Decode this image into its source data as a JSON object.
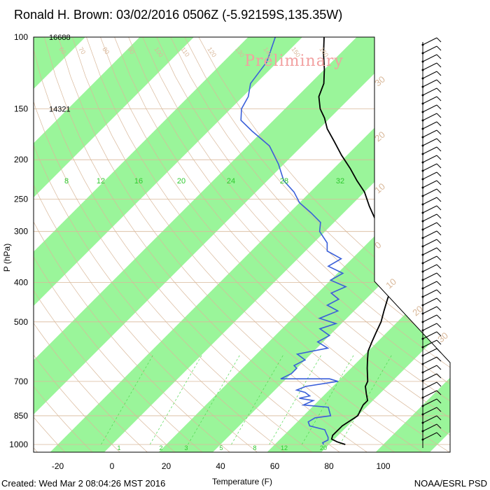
{
  "title": "Ronald H. Brown: 03/02/2016 0506Z (-5.92159S,135.35W)",
  "watermark": "Preliminary",
  "footer_left": "Created: Wed Mar  2 08:04:26 MST 2016",
  "footer_right": "NOAA/ESRL PSD",
  "colors": {
    "temperature": "#000000",
    "dewpoint": "#3a5fd9",
    "green_band": "#9af59a",
    "isotherm": "#d9b89a",
    "mixing_ratio": "#4fd84f",
    "watermark": "#f2a0a0"
  },
  "chart_data": {
    "type": "line",
    "chart_kind": "skew-T log-P diagram",
    "xlabel": "Temperature (F)",
    "ylabel": "P (hPa)",
    "x_ticks": [
      -20,
      0,
      20,
      40,
      60,
      80,
      100
    ],
    "y_ticks": [
      100,
      150,
      200,
      250,
      300,
      400,
      500,
      700,
      850,
      1000
    ],
    "xlim": [
      -28,
      124
    ],
    "ylim": [
      1050,
      100
    ],
    "y_scale": "log",
    "height_labels": [
      {
        "pressure": 100,
        "height": "16688"
      },
      {
        "pressure": 150,
        "height": "14321"
      }
    ],
    "mixing_ratio_labels": [
      "1",
      "2",
      "3",
      "5",
      "8",
      "12",
      "20"
    ],
    "upper_labels": [
      "8",
      "12",
      "16",
      "20",
      "24",
      "28",
      "32"
    ],
    "isotherm_labels": [
      "-80",
      "-70",
      "-60",
      "-50",
      "-40",
      "-30",
      "-20",
      "-10",
      "0",
      "10",
      "20",
      "30"
    ],
    "adiabat_labels": [
      "60",
      "70",
      "80",
      "90",
      "100",
      "110",
      "120",
      "130",
      "140",
      "150",
      "160"
    ],
    "series": [
      {
        "name": "Temperature",
        "points": [
          [
            86,
            1000
          ],
          [
            82,
            985
          ],
          [
            79,
            970
          ],
          [
            78,
            950
          ],
          [
            78,
            900
          ],
          [
            80,
            850
          ],
          [
            78,
            800
          ],
          [
            78,
            780
          ],
          [
            75,
            750
          ],
          [
            72,
            720
          ],
          [
            71,
            700
          ],
          [
            66,
            650
          ],
          [
            63,
            620
          ],
          [
            60,
            590
          ],
          [
            58,
            560
          ],
          [
            56,
            530
          ],
          [
            54,
            500
          ],
          [
            51,
            470
          ],
          [
            48,
            440
          ],
          [
            45,
            410
          ],
          [
            42,
            390
          ],
          [
            38,
            365
          ],
          [
            33,
            340
          ],
          [
            28,
            320
          ],
          [
            22,
            300
          ],
          [
            14,
            280
          ],
          [
            7,
            260
          ],
          [
            0,
            240
          ],
          [
            -7,
            225
          ],
          [
            -14,
            210
          ],
          [
            -22,
            195
          ],
          [
            -30,
            180
          ],
          [
            -37,
            168
          ],
          [
            -42,
            158
          ],
          [
            -47,
            150
          ],
          [
            -52,
            140
          ],
          [
            -55,
            130
          ],
          [
            -60,
            120
          ],
          [
            -66,
            110
          ],
          [
            -72,
            100
          ]
        ]
      },
      {
        "name": "Dewpoint",
        "points": [
          [
            78,
            1000
          ],
          [
            77,
            990
          ],
          [
            78,
            975
          ],
          [
            77,
            960
          ],
          [
            75,
            940
          ],
          [
            73,
            920
          ],
          [
            66,
            900
          ],
          [
            64,
            880
          ],
          [
            65,
            860
          ],
          [
            70,
            850
          ],
          [
            68,
            830
          ],
          [
            66,
            810
          ],
          [
            56,
            800
          ],
          [
            58,
            780
          ],
          [
            52,
            770
          ],
          [
            55,
            760
          ],
          [
            52,
            745
          ],
          [
            48,
            735
          ],
          [
            50,
            720
          ],
          [
            60,
            700
          ],
          [
            56,
            690
          ],
          [
            38,
            690
          ],
          [
            40,
            670
          ],
          [
            40,
            650
          ],
          [
            38,
            640
          ],
          [
            40,
            620
          ],
          [
            35,
            600
          ],
          [
            44,
            580
          ],
          [
            38,
            560
          ],
          [
            40,
            540
          ],
          [
            34,
            520
          ],
          [
            38,
            505
          ],
          [
            30,
            490
          ],
          [
            34,
            470
          ],
          [
            28,
            455
          ],
          [
            30,
            440
          ],
          [
            25,
            425
          ],
          [
            28,
            410
          ],
          [
            20,
            395
          ],
          [
            22,
            380
          ],
          [
            14,
            365
          ],
          [
            16,
            350
          ],
          [
            8,
            335
          ],
          [
            5,
            320
          ],
          [
            -2,
            300
          ],
          [
            -5,
            285
          ],
          [
            -12,
            270
          ],
          [
            -20,
            255
          ],
          [
            -26,
            240
          ],
          [
            -34,
            225
          ],
          [
            -42,
            205
          ],
          [
            -52,
            185
          ],
          [
            -64,
            170
          ],
          [
            -72,
            160
          ],
          [
            -76,
            150
          ],
          [
            -78,
            140
          ],
          [
            -82,
            130
          ],
          [
            -84,
            115
          ],
          [
            -90,
            100
          ]
        ]
      }
    ]
  }
}
